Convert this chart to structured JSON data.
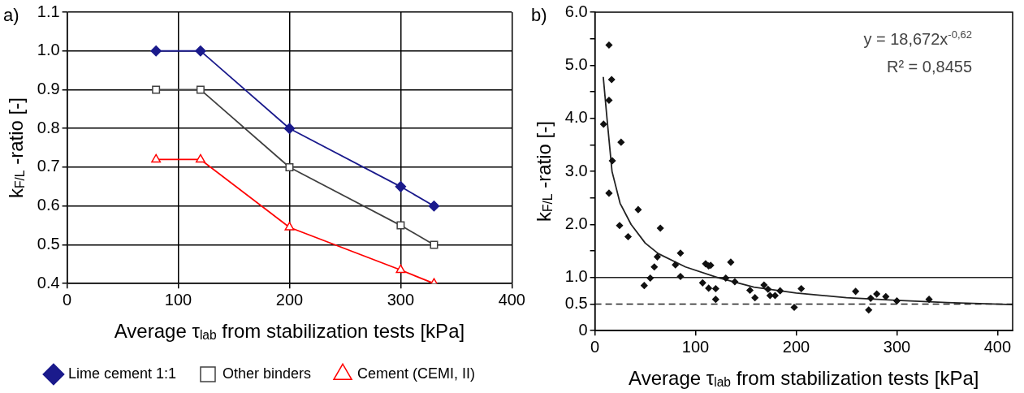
{
  "chart_data": [
    {
      "type": "line",
      "title": "a)",
      "xlabel": "Average τ$_{lab}$ from stabilization tests [kPa]",
      "ylabel": "k$_{F/L}$ -ratio [-]",
      "xlim": [
        0,
        400
      ],
      "xticks": [
        0,
        100,
        200,
        300,
        400
      ],
      "ylim": [
        0.4,
        1.1
      ],
      "yticks": [
        0.4,
        0.5,
        0.6,
        0.7,
        0.8,
        0.9,
        {
          "value": 1,
          "label": "1.0"
        },
        1.1
      ],
      "grid": true,
      "legend": "bottom",
      "line_style": "solid",
      "series": [
        {
          "name": "Lime cement 1:1",
          "color": "#1a1a8c",
          "marker": "diamond",
          "x": [
            80,
            120,
            200,
            300,
            330
          ],
          "values": [
            1.0,
            1.0,
            0.8,
            0.65,
            0.6
          ]
        },
        {
          "name": "Other binders",
          "color": "#404040",
          "marker": "square",
          "x": [
            80,
            120,
            200,
            300,
            330
          ],
          "values": [
            0.9,
            0.9,
            0.7,
            0.55,
            0.5
          ]
        },
        {
          "name": "Cement (CEMI, II)",
          "color": "#ff0000",
          "marker": "triangle",
          "x": [
            80,
            120,
            200,
            300,
            330
          ],
          "values": [
            0.72,
            0.72,
            0.545,
            0.435,
            0.4
          ]
        }
      ]
    },
    {
      "type": "scatter",
      "title": "b)",
      "xlabel": "Average τ$_{lab}$ from stabilization tests [kPa]",
      "ylabel": "k$_{F/L}$ -ratio [-]",
      "xlim": [
        0,
        415
      ],
      "xticks": [
        0,
        100,
        200,
        300,
        400
      ],
      "ylim": [
        0,
        6
      ],
      "yticks": [
        {
          "value": 0,
          "label": "0"
        },
        {
          "value": 0.5,
          "label": "0.5"
        },
        {
          "value": 1,
          "label": "1.0"
        },
        {
          "value": 1.5,
          "label": null
        },
        {
          "value": 2,
          "label": "2.0"
        },
        {
          "value": 2.5,
          "label": null
        },
        {
          "value": 3,
          "label": "3.0"
        },
        {
          "value": 3.5,
          "label": null
        },
        {
          "value": 4,
          "label": "4.0"
        },
        {
          "value": 4.5,
          "label": null
        },
        {
          "value": 5,
          "label": "5.0"
        },
        {
          "value": 5.5,
          "label": null
        },
        {
          "value": 6,
          "label": "6.0"
        }
      ],
      "annotations": [
        "y = 18,672x$^{-0,62}$",
        "R² = 0,8455"
      ],
      "ref_lines": [
        {
          "axis": "y",
          "value": 1,
          "line_style": "solid",
          "color": "#222222"
        },
        {
          "axis": "y",
          "value": 0.5,
          "line_style": "dashed",
          "color": "#222222"
        }
      ],
      "series": [
        {
          "color": "#111111",
          "marker": "diamond",
          "x": [
            8.6,
            14,
            16.6,
            14,
            17.3,
            14,
            26,
            24.5,
            33,
            43,
            65,
            49,
            55,
            59,
            62,
            85,
            80,
            85,
            107,
            110,
            113,
            115,
            113,
            120,
            120,
            130,
            135,
            139,
            154,
            159,
            168,
            172,
            174,
            179,
            184,
            198,
            205,
            259,
            272,
            274,
            280,
            289,
            300,
            332
          ],
          "values": [
            3.89,
            5.38,
            4.73,
            4.34,
            3.2,
            2.59,
            3.55,
            1.98,
            1.77,
            2.28,
            1.93,
            0.85,
            0.99,
            1.2,
            1.39,
            1.46,
            1.24,
            1.02,
            0.9,
            1.26,
            1.22,
            1.23,
            0.8,
            0.79,
            0.59,
            0.99,
            1.29,
            0.92,
            0.76,
            0.62,
            0.86,
            0.78,
            0.66,
            0.66,
            0.75,
            0.44,
            0.79,
            0.74,
            0.39,
            0.61,
            0.69,
            0.64,
            0.56,
            0.59
          ]
        },
        {
          "type": "line",
          "color": "#222222",
          "marker": "none",
          "x": [
            8.3,
            12,
            17,
            25,
            36,
            50,
            63,
            90,
            122,
            158,
            200,
            250,
            300,
            350,
            415
          ],
          "values": [
            4.78,
            4.0,
            3.0,
            2.4,
            2.0,
            1.65,
            1.45,
            1.2,
            1.0,
            0.82,
            0.71,
            0.62,
            0.57,
            0.53,
            0.49
          ]
        }
      ]
    }
  ]
}
